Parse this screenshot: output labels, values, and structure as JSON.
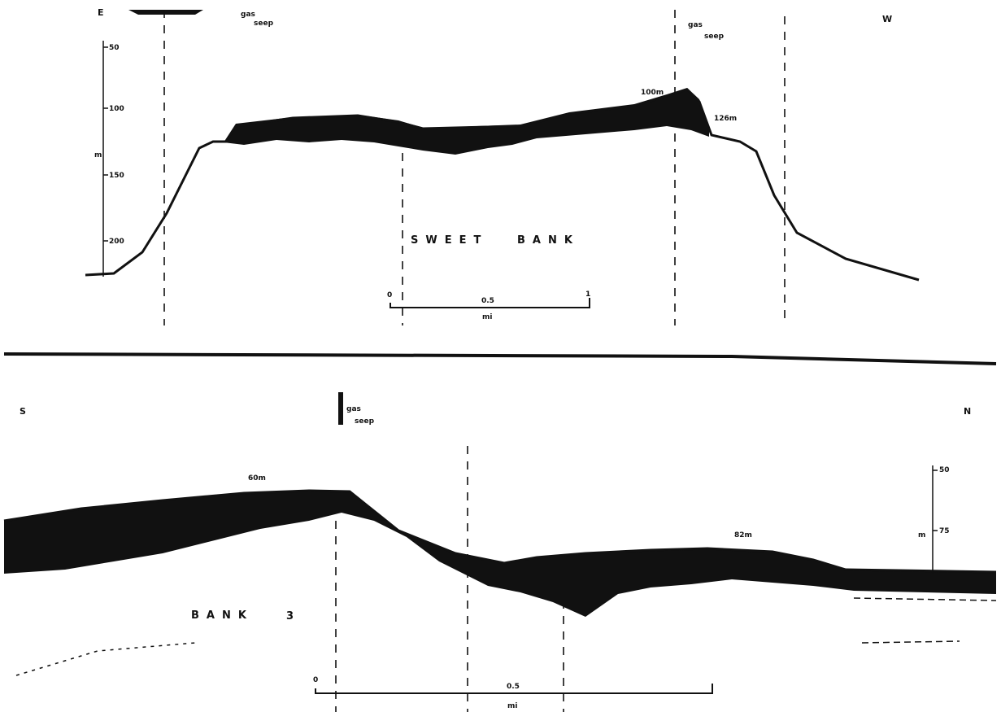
{
  "top_profile": {
    "direction_left": "E",
    "direction_right": "W",
    "seeps": [
      [
        "gas",
        "seep"
      ],
      [
        "gas",
        "seep"
      ]
    ],
    "depth_labels": [
      "100m",
      "126m"
    ],
    "depth_axis": {
      "unit": "m",
      "ticks": [
        "50",
        "100",
        "150",
        "200"
      ]
    },
    "name": [
      "SWEET",
      "BANK"
    ],
    "scale": {
      "start": "0",
      "mid": "0.5",
      "end": "1",
      "unit": "mi"
    }
  },
  "bottom_profile": {
    "direction_left": "S",
    "direction_right": "N",
    "seeps": [
      [
        "gas",
        "seep"
      ]
    ],
    "depth_labels": [
      "60m",
      "82m"
    ],
    "depth_axis": {
      "unit": "m",
      "ticks": [
        "50",
        "75"
      ]
    },
    "name": [
      "BANK",
      "3"
    ],
    "scale": {
      "start": "0",
      "mid": "0.5",
      "unit": "mi"
    }
  }
}
